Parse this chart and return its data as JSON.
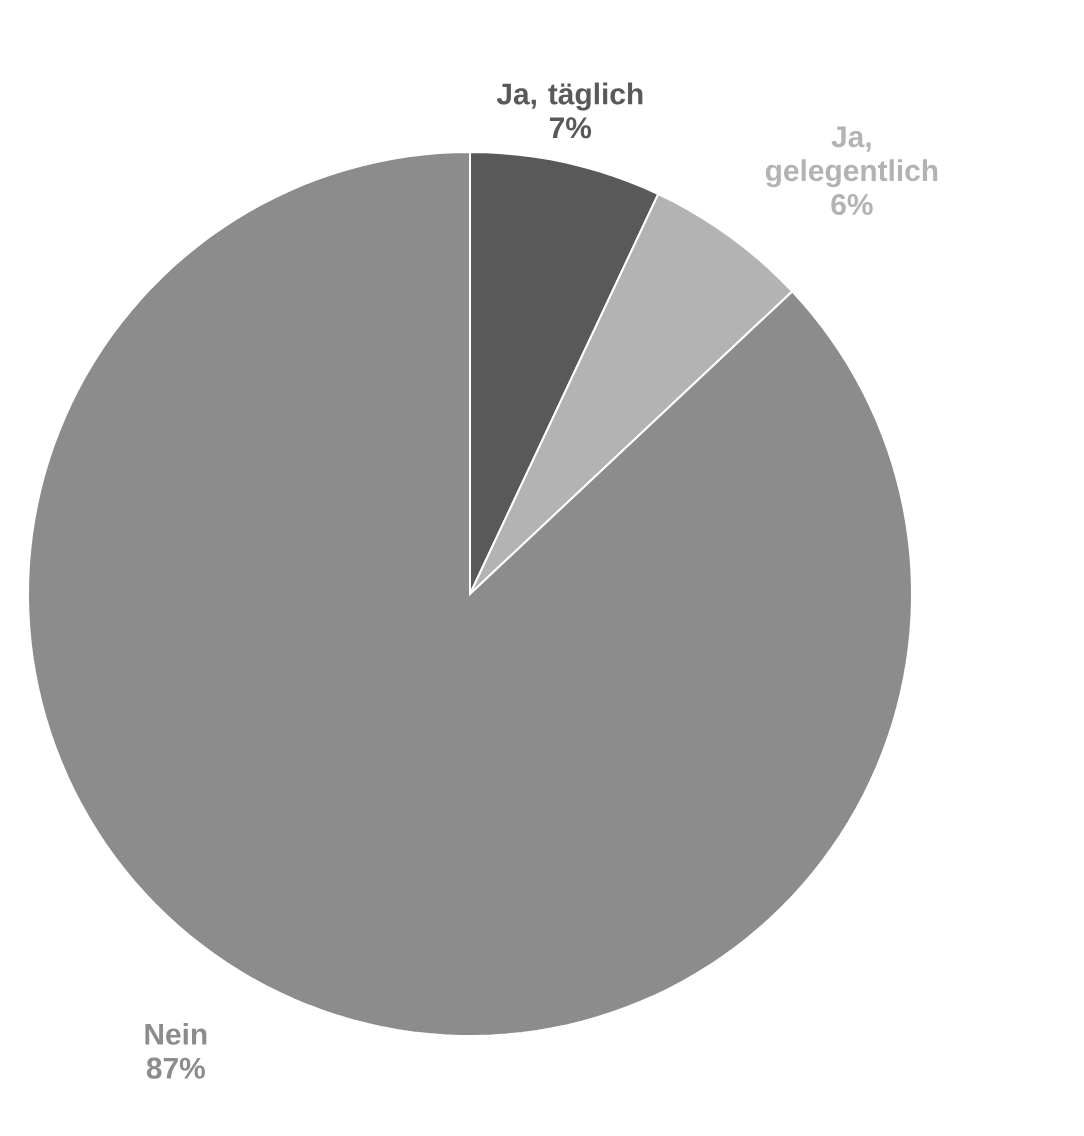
{
  "chart_data": {
    "type": "pie",
    "categories": [
      "Ja, täglich",
      "Ja, gelegentlich",
      "Nein"
    ],
    "values": [
      7,
      6,
      87
    ],
    "colors": [
      "#595959",
      "#b3b3b3",
      "#8c8c8c"
    ],
    "value_labels": [
      "7%",
      "6%",
      "87%"
    ]
  }
}
